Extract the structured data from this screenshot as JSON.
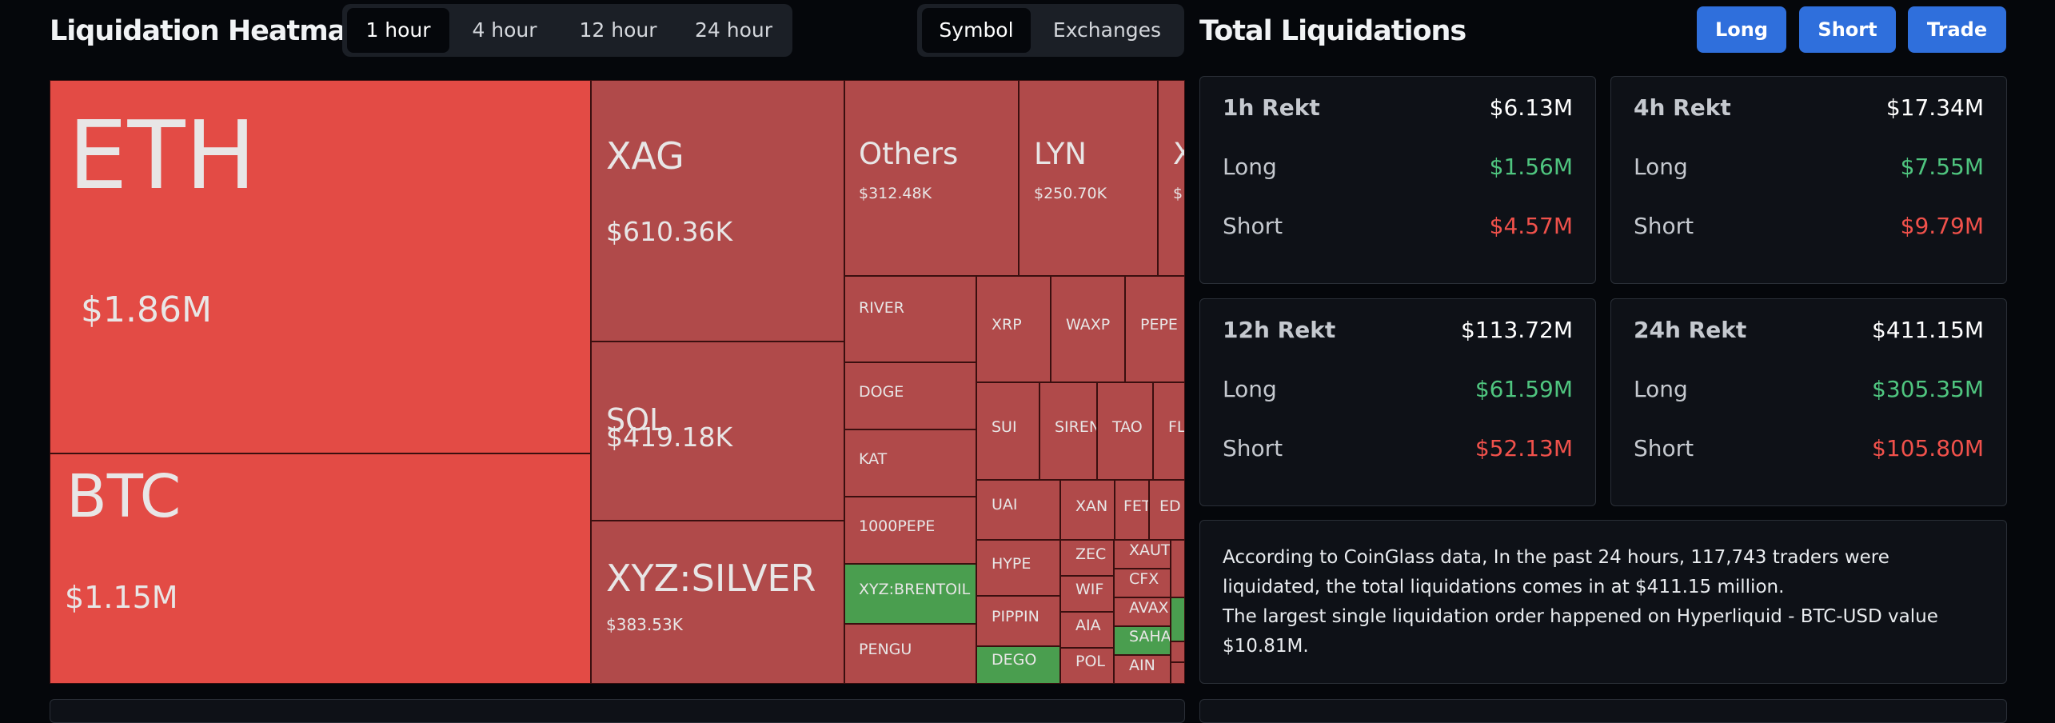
{
  "header": {
    "heatmap_title": "Liquidation Heatmap",
    "time_tabs": [
      "1 hour",
      "4 hour",
      "12 hour",
      "24 hour"
    ],
    "active_time_tab": "1 hour",
    "group_tabs": [
      "Symbol",
      "Exchanges"
    ],
    "active_group_tab": "Symbol",
    "total_title": "Total Liquidations",
    "buttons": {
      "long": "Long",
      "short": "Short",
      "trade": "Trade"
    }
  },
  "heatmap": [
    {
      "name": "ETH",
      "value": "$1.86M",
      "color": "#e34b45"
    },
    {
      "name": "BTC",
      "value": "$1.15M",
      "color": "#e34b45"
    },
    {
      "name": "XAG",
      "value": "$610.36K",
      "color": "#b04a4a"
    },
    {
      "name": "SOL",
      "value": "$419.18K",
      "color": "#b04a4a"
    },
    {
      "name": "XYZ:SILVER",
      "value": "$383.53K",
      "color": "#b04a4a"
    },
    {
      "name": "Others",
      "value": "$312.48K",
      "color": "#b04a4a"
    },
    {
      "name": "LYN",
      "value": "$250.70K",
      "color": "#b04a4a"
    },
    {
      "name": "X",
      "value": "$",
      "color": "#b04a4a"
    },
    {
      "name": "RIVER",
      "value": "",
      "color": "#b04a4a"
    },
    {
      "name": "XRP",
      "value": "",
      "color": "#b04a4a"
    },
    {
      "name": "WAXP",
      "value": "",
      "color": "#b04a4a"
    },
    {
      "name": "PEPE",
      "value": "",
      "color": "#b04a4a"
    },
    {
      "name": "DOGE",
      "value": "",
      "color": "#b04a4a"
    },
    {
      "name": "SUI",
      "value": "",
      "color": "#b04a4a"
    },
    {
      "name": "SIREN",
      "value": "",
      "color": "#b04a4a"
    },
    {
      "name": "TAO",
      "value": "",
      "color": "#b04a4a"
    },
    {
      "name": "FL",
      "value": "",
      "color": "#b04a4a"
    },
    {
      "name": "KAT",
      "value": "",
      "color": "#b04a4a"
    },
    {
      "name": "UAI",
      "value": "",
      "color": "#b04a4a"
    },
    {
      "name": "XAN",
      "value": "",
      "color": "#b04a4a"
    },
    {
      "name": "FET",
      "value": "",
      "color": "#b04a4a"
    },
    {
      "name": "ED",
      "value": "",
      "color": "#b04a4a"
    },
    {
      "name": "1000PEPE",
      "value": "",
      "color": "#b04a4a"
    },
    {
      "name": "HYPE",
      "value": "",
      "color": "#b04a4a"
    },
    {
      "name": "ZEC",
      "value": "",
      "color": "#b04a4a"
    },
    {
      "name": "XAUT",
      "value": "",
      "color": "#b04a4a"
    },
    {
      "name": "CFX",
      "value": "",
      "color": "#b04a4a"
    },
    {
      "name": "XYZ:BRENTOIL",
      "value": "",
      "color": "#4a9e4f"
    },
    {
      "name": "PIPPIN",
      "value": "",
      "color": "#b04a4a"
    },
    {
      "name": "WIF",
      "value": "",
      "color": "#b04a4a"
    },
    {
      "name": "AVAX",
      "value": "",
      "color": "#b04a4a"
    },
    {
      "name": "AIA",
      "value": "",
      "color": "#b04a4a"
    },
    {
      "name": "SAHARA",
      "value": "",
      "color": "#4a9e4f"
    },
    {
      "name": "PENGU",
      "value": "",
      "color": "#b04a4a"
    },
    {
      "name": "DEGO",
      "value": "",
      "color": "#4a9e4f"
    },
    {
      "name": "POL",
      "value": "",
      "color": "#b04a4a"
    },
    {
      "name": "AIN",
      "value": "",
      "color": "#b04a4a"
    },
    {
      "name": "",
      "value": "",
      "color": "#b04a4a"
    },
    {
      "name": "",
      "value": "",
      "color": "#4a9e4f"
    },
    {
      "name": "",
      "value": "",
      "color": "#b04a4a"
    },
    {
      "name": "",
      "value": "",
      "color": "#b04a4a"
    }
  ],
  "stats": [
    {
      "label": "1h Rekt",
      "total": "$6.13M",
      "long_label": "Long",
      "long": "$1.56M",
      "short_label": "Short",
      "short": "$4.57M"
    },
    {
      "label": "4h Rekt",
      "total": "$17.34M",
      "long_label": "Long",
      "long": "$7.55M",
      "short_label": "Short",
      "short": "$9.79M"
    },
    {
      "label": "12h Rekt",
      "total": "$113.72M",
      "long_label": "Long",
      "long": "$61.59M",
      "short_label": "Short",
      "short": "$52.13M"
    },
    {
      "label": "24h Rekt",
      "total": "$411.15M",
      "long_label": "Long",
      "long": "$305.35M",
      "short_label": "Short",
      "short": "$105.80M"
    }
  ],
  "summary": {
    "line1": "According to CoinGlass data, In the past 24 hours, 117,743 traders were liquidated, the total liquidations comes in at $411.15 million.",
    "line2": "The largest single liquidation order happened on Hyperliquid - BTC-USD value $10.81M."
  }
}
